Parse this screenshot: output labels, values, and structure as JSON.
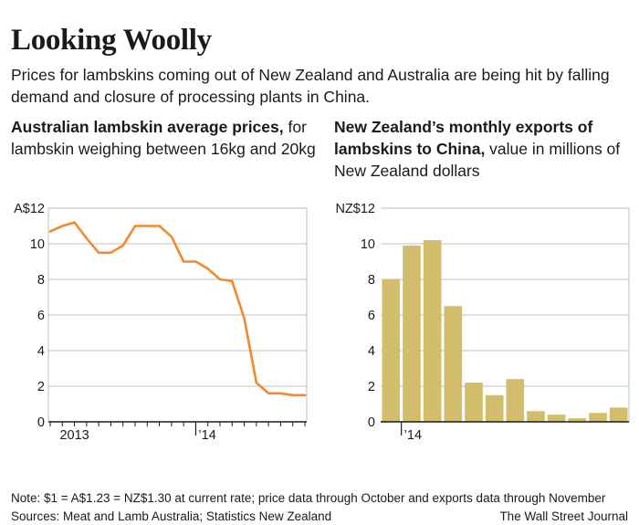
{
  "header": {
    "title": "Looking Woolly",
    "subtitle": "Prices for lambskins coming out of New Zealand and Australia are being hit by falling demand and closure of processing plants in China."
  },
  "left_chart": {
    "title_bold": "Australian lambskin average prices,",
    "title_rest": " for lambskin weighing between 16kg and 20kg"
  },
  "right_chart": {
    "title_bold": "New Zealand’s monthly exports of lambskins to China,",
    "title_rest": " value in millions of New Zealand dollars"
  },
  "footer": {
    "note": "Note: $1 = A$1.23 = NZ$1.30 at current rate; price data through October and exports data through November",
    "sources": "Sources: Meat and Lamb Australia; Statistics New Zealand",
    "credit": "The Wall Street Journal"
  },
  "colors": {
    "line": "#f08a2c",
    "bar": "#d2bd6c",
    "grid": "#bfbfbf",
    "axis": "#1a1a1a"
  },
  "chart_data": [
    {
      "type": "line",
      "title": "Australian lambskin average prices",
      "ylim": [
        0,
        12
      ],
      "y_ticks": [
        {
          "value": 12,
          "label": "A$12"
        },
        {
          "value": 10,
          "label": "10"
        },
        {
          "value": 8,
          "label": "8"
        },
        {
          "value": 6,
          "label": "6"
        },
        {
          "value": 4,
          "label": "4"
        },
        {
          "value": 2,
          "label": "2"
        },
        {
          "value": 0,
          "label": "0"
        }
      ],
      "x_labels": [
        {
          "index": 2,
          "label": "2013"
        },
        {
          "index": 12,
          "label": "’14"
        }
      ],
      "year_boundary_index": 12,
      "values": [
        10.7,
        11.0,
        11.2,
        10.3,
        9.5,
        9.5,
        9.9,
        11.0,
        11.0,
        11.0,
        10.4,
        9.0,
        9.0,
        8.6,
        8.0,
        7.9,
        5.8,
        2.2,
        1.6,
        1.6,
        1.5,
        1.5
      ]
    },
    {
      "type": "bar",
      "title": "New Zealand's monthly exports of lambskins to China",
      "ylim": [
        0,
        12
      ],
      "y_ticks": [
        {
          "value": 12,
          "label": "NZ$12"
        },
        {
          "value": 10,
          "label": "10"
        },
        {
          "value": 8,
          "label": "8"
        },
        {
          "value": 6,
          "label": "6"
        },
        {
          "value": 4,
          "label": "4"
        },
        {
          "value": 2,
          "label": "2"
        },
        {
          "value": 0,
          "label": "0"
        }
      ],
      "x_labels": [
        {
          "index": 1,
          "label": "’14"
        }
      ],
      "year_boundary_index": 1,
      "values": [
        8.0,
        9.9,
        10.2,
        6.5,
        2.2,
        1.5,
        2.4,
        0.6,
        0.4,
        0.2,
        0.5,
        0.8
      ]
    }
  ]
}
